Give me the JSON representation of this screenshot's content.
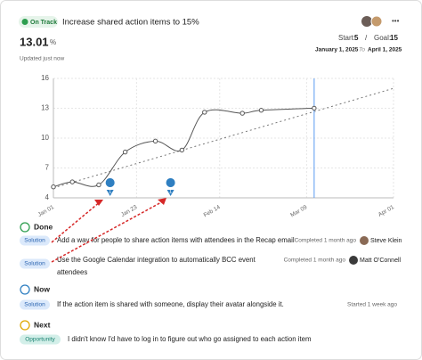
{
  "header": {
    "status": "On Track",
    "title": "Increase shared action items to 15%",
    "value": "13.01",
    "unit": "%",
    "start_label": "Start:",
    "start": 5,
    "separator": "/",
    "goal_label": "Goal:",
    "goal": 15,
    "start_date": "January 1, 2025",
    "to": "To",
    "end_date": "April 1, 2025",
    "updated": "Updated just now",
    "menu": "•••"
  },
  "chart_data": {
    "type": "line",
    "x": [
      0,
      5,
      12,
      19,
      27,
      34,
      40,
      50,
      55,
      69
    ],
    "series": [
      {
        "color": "#555555",
        "values": [
          5.1,
          5.6,
          5.3,
          8.6,
          9.7,
          8.8,
          12.6,
          12.5,
          12.8,
          13.01
        ]
      }
    ],
    "xlim": [
      0,
      90
    ],
    "xticks": [
      {
        "value": 0,
        "label": "Jan 01"
      },
      {
        "value": 22,
        "label": "Jan 23"
      },
      {
        "value": 44,
        "label": "Feb 14"
      },
      {
        "value": 67,
        "label": "Mar 09"
      },
      {
        "value": 90,
        "label": "Apr 01"
      }
    ],
    "ylim": [
      4,
      16
    ],
    "yticks": [
      4,
      7,
      10,
      13,
      16
    ],
    "grid": true,
    "markers": [
      {
        "x": 15,
        "label": "1"
      },
      {
        "x": 31,
        "label": "1"
      }
    ]
  },
  "sections": [
    {
      "title": "Done",
      "items": [
        {
          "tag": "Solution",
          "text": [
            "Add a way for people to share action items with attendees in the Recap email"
          ],
          "meta": "Completed 1 month ago",
          "person": "Steve Klein"
        },
        {
          "tag": "Solution",
          "text": [
            "Use the Google Calendar integration to automatically BCC event",
            "attendees"
          ],
          "meta": "Completed 1 month ago",
          "person": "Matt O'Connell"
        }
      ]
    },
    {
      "title": "Now",
      "items": [
        {
          "tag": "Solution",
          "text": [
            "If the action item is shared with someone, display their avatar alongside it."
          ],
          "meta": "Started 1 week ago"
        }
      ]
    },
    {
      "title": "Next",
      "items": [
        {
          "tag": "Opportunity",
          "text": [
            "I didn't know I'd have to log in to figure out who go assigned to each action item"
          ]
        }
      ]
    }
  ]
}
